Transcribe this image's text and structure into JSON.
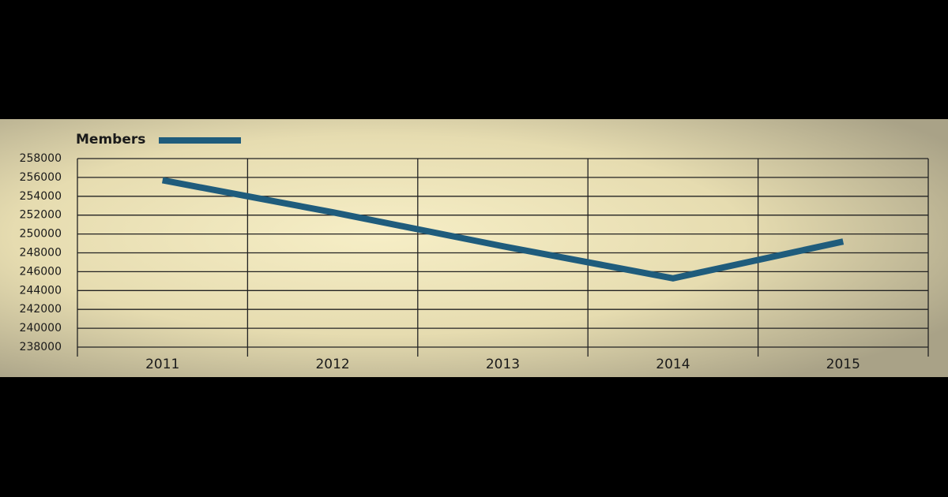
{
  "chart_data": {
    "type": "line",
    "categories": [
      "2011",
      "2012",
      "2013",
      "2014",
      "2015"
    ],
    "series": [
      {
        "name": "Members",
        "color": "#1f5c7c",
        "values": [
          255700,
          252300,
          248700,
          245300,
          249200
        ]
      }
    ],
    "ylim": [
      238000,
      258000
    ],
    "yticks": [
      238000,
      240000,
      242000,
      244000,
      246000,
      248000,
      250000,
      252000,
      254000,
      256000,
      258000
    ],
    "grid": true
  }
}
